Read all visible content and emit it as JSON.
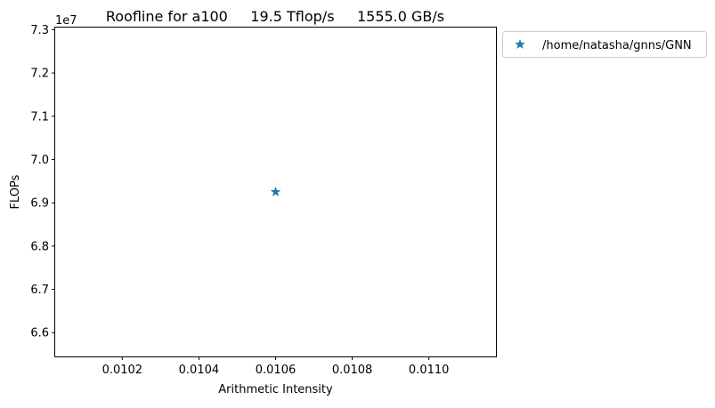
{
  "chart_data": {
    "type": "scatter",
    "title": "Roofline for a100     19.5 Tflop/s     1555.0 GB/s",
    "xlabel": "Arithmetic Intensity",
    "ylabel": "FLOPs",
    "y_offset_label": "1e7",
    "xlim": [
      0.010025,
      0.011175
    ],
    "ylim": [
      6.545,
      7.305
    ],
    "x_ticks": [
      0.0102,
      0.0104,
      0.0106,
      0.0108,
      0.011
    ],
    "x_tick_labels": [
      "0.0102",
      "0.0104",
      "0.0106",
      "0.0108",
      "0.0110"
    ],
    "y_ticks": [
      6.6,
      6.7,
      6.8,
      6.9,
      7.0,
      7.1,
      7.2,
      7.3
    ],
    "y_tick_labels": [
      "6.6",
      "6.7",
      "6.8",
      "6.9",
      "7.0",
      "7.1",
      "7.2",
      "7.3"
    ],
    "grid": false,
    "legend_placement": "outside-upper-right",
    "series": [
      {
        "name": "/home/natasha/gnns/GNN",
        "marker": "star",
        "color": "#1f77b4",
        "points": [
          {
            "x": 0.0106,
            "y": 6.925
          }
        ]
      }
    ]
  }
}
